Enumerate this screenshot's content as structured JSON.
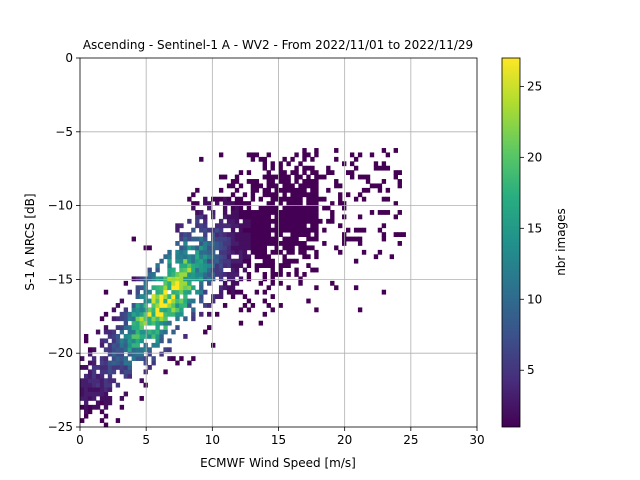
{
  "chart_data": {
    "type": "heatmap",
    "title": "Ascending - Sentinel-1 A - WV2 - From 2022/11/01 to 2022/11/29",
    "xlabel": "ECMWF Wind Speed [m/s]",
    "ylabel": "S-1 A NRCS [dB]",
    "xlim": [
      0,
      30
    ],
    "ylim": [
      -25,
      0
    ],
    "xticks": [
      0,
      5,
      10,
      15,
      20,
      25,
      30
    ],
    "yticks": [
      0,
      -5,
      -10,
      -15,
      -20,
      -25
    ],
    "grid": true,
    "colormap": "viridis",
    "colorbar": {
      "label": "nbr images",
      "range": [
        1,
        27
      ],
      "ticks": [
        5,
        10,
        15,
        20,
        25
      ]
    },
    "density_model": {
      "ridge": [
        {
          "x": 0.5,
          "y": -22.5
        },
        {
          "x": 3,
          "y": -20.0
        },
        {
          "x": 5,
          "y": -17.8
        },
        {
          "x": 7,
          "y": -15.6
        },
        {
          "x": 9,
          "y": -13.7
        },
        {
          "x": 11,
          "y": -12.5
        },
        {
          "x": 14,
          "y": -11.3
        },
        {
          "x": 18,
          "y": -10.0
        },
        {
          "x": 24,
          "y": -7.5
        }
      ],
      "peak_count": 27,
      "peak_location": {
        "x": 6.5,
        "y": -16.5
      },
      "bin_size": {
        "x": 0.3,
        "y": 0.3
      }
    }
  }
}
